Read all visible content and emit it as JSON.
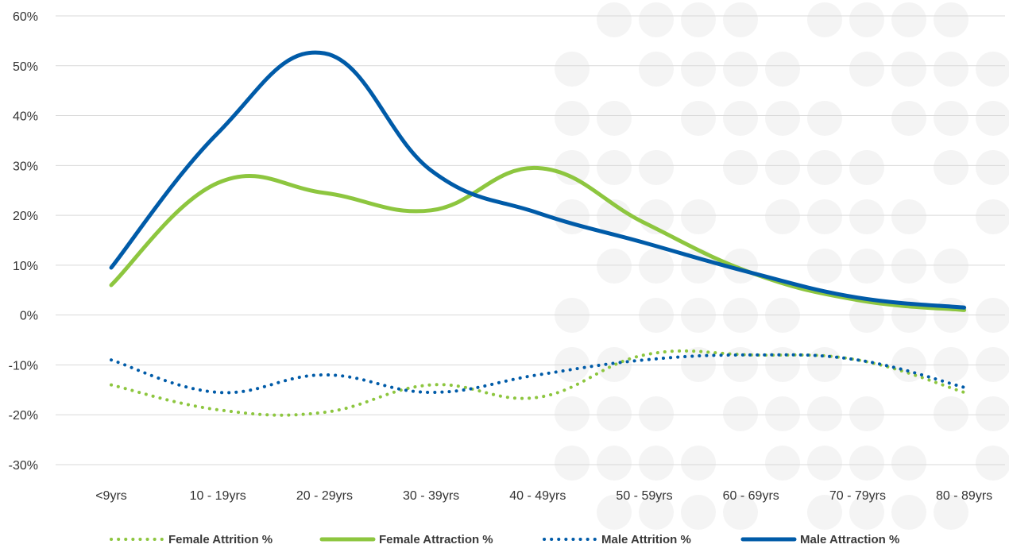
{
  "chart_data": {
    "type": "line",
    "categories": [
      "<9yrs",
      "10 - 19yrs",
      "20 - 29yrs",
      "30 - 39yrs",
      "40 - 49yrs",
      "50 - 59yrs",
      "60 - 69yrs",
      "70 - 79yrs",
      "80 - 89yrs"
    ],
    "y_ticks": [
      "60%",
      "50%",
      "40%",
      "30%",
      "20%",
      "10%",
      "0%",
      "-10%",
      "-20%",
      "-30%"
    ],
    "ylim": [
      -30,
      60
    ],
    "grid": true,
    "legend_position": "bottom",
    "series": [
      {
        "name": "Female Attrition %",
        "style": "dotted",
        "color": "#8dc63f",
        "values": [
          -14,
          -19,
          -19.5,
          -14,
          -16.5,
          -8,
          -8,
          -9,
          -15.5
        ]
      },
      {
        "name": "Female Attraction %",
        "style": "solid",
        "color": "#8dc63f",
        "values": [
          6,
          26.5,
          24.5,
          21,
          29.5,
          18.5,
          8.5,
          3,
          1
        ]
      },
      {
        "name": "Male Attrition %",
        "style": "dotted",
        "color": "#005ba8",
        "values": [
          -9,
          -15.5,
          -12,
          -15.5,
          -12,
          -9,
          -8,
          -9,
          -14.5
        ]
      },
      {
        "name": "Male Attraction %",
        "style": "solid",
        "color": "#005ba8",
        "values": [
          9.5,
          36.5,
          52.5,
          29,
          20.5,
          14.5,
          8.5,
          3.5,
          1.5
        ]
      }
    ]
  }
}
